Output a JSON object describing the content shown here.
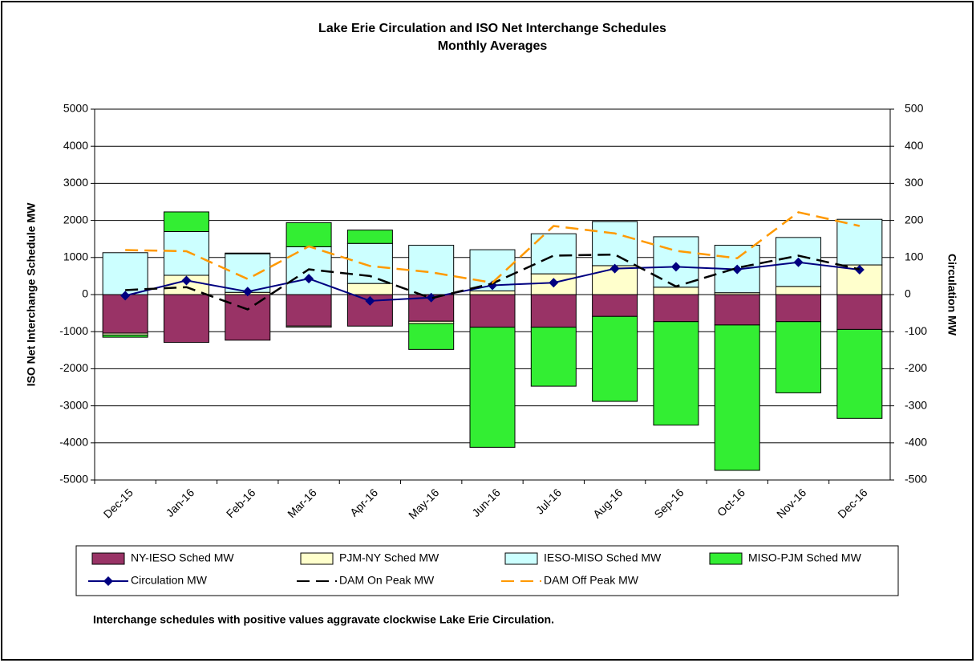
{
  "chart_data": {
    "type": "bar",
    "title": "Lake Erie Circulation and ISO Net Interchange Schedules",
    "subtitle": "Monthly Averages",
    "y_label": "ISO Net Interchange  Schedule MW",
    "y2_label": "Circulation MW",
    "annotation": "Interchange schedules with positive values aggravate clockwise Lake Erie Circulation.",
    "categories": [
      "Dec-15",
      "Jan-16",
      "Feb-16",
      "Mar-16",
      "Apr-16",
      "May-16",
      "Jun-16",
      "Jul-16",
      "Aug-16",
      "Sep-16",
      "Oct-16",
      "Nov-16",
      "Dec-16"
    ],
    "ylim": [
      -5000,
      5000
    ],
    "yticks": [
      -5000,
      -4000,
      -3000,
      -2000,
      -1000,
      0,
      1000,
      2000,
      3000,
      4000,
      5000
    ],
    "y2lim": [
      -500,
      500
    ],
    "y2ticks": [
      -500,
      -400,
      -300,
      -200,
      -100,
      0,
      100,
      200,
      300,
      400,
      500
    ],
    "grid": true,
    "stacked": true,
    "series": [
      {
        "name": "NY-IESO Sched MW",
        "type": "bar",
        "color": "#993366",
        "values": [
          -1040,
          -1290,
          -1230,
          -850,
          -850,
          -720,
          -880,
          -880,
          -590,
          -730,
          -820,
          -730,
          -940
        ]
      },
      {
        "name": "PJM-NY Sched MW",
        "type": "bar",
        "color": "#ffffcc",
        "values": [
          -50,
          520,
          60,
          -30,
          300,
          -60,
          100,
          560,
          780,
          200,
          50,
          220,
          800
        ]
      },
      {
        "name": "IESO-MISO Sched MW",
        "type": "bar",
        "color": "#ccffff",
        "values": [
          1130,
          1180,
          1040,
          1290,
          1080,
          1330,
          1110,
          1080,
          1190,
          1360,
          1280,
          1320,
          1230
        ]
      },
      {
        "name": "MISO-PJM Sched MW",
        "type": "bar",
        "color": "#33ee33",
        "values": [
          -60,
          530,
          20,
          650,
          360,
          -700,
          -3240,
          -1590,
          -2290,
          -2790,
          -3920,
          -1920,
          -2400
        ]
      },
      {
        "name": "Circulation MW",
        "type": "line",
        "axis": "y2",
        "color": "#000080",
        "marker": "diamond",
        "values": [
          -3,
          38,
          8,
          43,
          -17,
          -8,
          25,
          32,
          70,
          75,
          68,
          87,
          67
        ]
      },
      {
        "name": "DAM On Peak MW",
        "type": "line",
        "axis": "y2",
        "color": "#000000",
        "dashed": true,
        "values": [
          12,
          20,
          -40,
          68,
          50,
          -10,
          30,
          105,
          108,
          22,
          72,
          105,
          68
        ]
      },
      {
        "name": "DAM Off Peak MW",
        "type": "line",
        "axis": "y2",
        "color": "#ff9900",
        "dashed": true,
        "values": [
          120,
          117,
          42,
          130,
          77,
          60,
          32,
          185,
          165,
          118,
          98,
          222,
          185
        ]
      }
    ]
  }
}
